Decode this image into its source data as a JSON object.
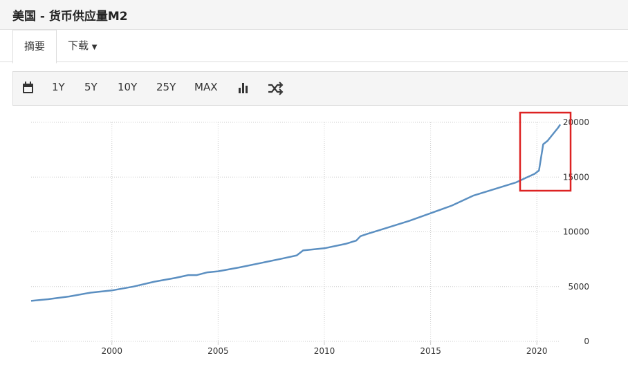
{
  "header": {
    "title": "美国 - 货币供应量M2"
  },
  "tabs": [
    "摘要",
    "下载"
  ],
  "toolbar": [
    "1Y",
    "5Y",
    "10Y",
    "25Y",
    "MAX"
  ],
  "chart_data": {
    "type": "line",
    "color": "#5b8fc1",
    "x": [
      1996.2,
      1997,
      1998,
      1999,
      2000,
      2001,
      2002,
      2003,
      2003.6,
      2004,
      2004.5,
      2005,
      2006,
      2007,
      2008,
      2008.7,
      2009,
      2010,
      2011,
      2011.5,
      2011.7,
      2012,
      2013,
      2014,
      2015,
      2016,
      2017,
      2018,
      2019,
      2019.9,
      2020.1,
      2020.3,
      2020.5,
      2021,
      2021.1
    ],
    "values": [
      3700,
      3850,
      4100,
      4450,
      4650,
      5000,
      5450,
      5800,
      6050,
      6050,
      6300,
      6400,
      6750,
      7150,
      7550,
      7850,
      8300,
      8500,
      8900,
      9200,
      9600,
      9800,
      10400,
      11000,
      11700,
      12400,
      13300,
      13900,
      14500,
      15300,
      15600,
      18000,
      18300,
      19500,
      19800
    ],
    "xlim": [
      1996.2,
      2021.1
    ],
    "xticks": [
      2000,
      2005,
      2010,
      2015,
      2020
    ],
    "ylim": [
      0,
      20000
    ],
    "yticks": [
      0,
      5000,
      10000,
      15000,
      20000
    ],
    "grid": true
  }
}
